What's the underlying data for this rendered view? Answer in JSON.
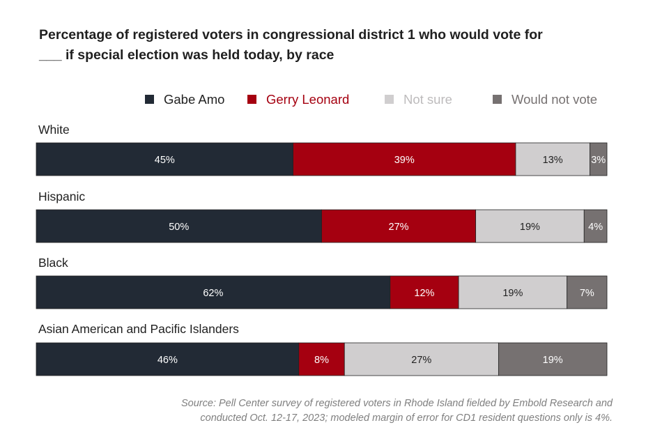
{
  "title_lines": [
    "Percentage of registered voters in congressional district 1 who would vote for",
    "___ if special election was held today, by race"
  ],
  "source_lines": [
    "Source: Pell Center survey of registered voters in Rhode Island fielded by Embold Research and",
    "conducted Oct. 12-17, 2023; modeled margin of error for CD1 resident questions only is 4%."
  ],
  "colors": {
    "gabe_amo": "#222a35",
    "gerry_leonard": "#a50010",
    "not_sure": "#d0cecf",
    "would_not_vote": "#767171",
    "label_dark_bg": "#ffffff",
    "label_light_bg": "#222222"
  },
  "chart_data": {
    "type": "bar",
    "orientation": "horizontal",
    "stacked": true,
    "percent_stacked": true,
    "categories": [
      "White",
      "Hispanic",
      "Black",
      "Asian American and Pacific Islanders"
    ],
    "series": [
      {
        "name": "Gabe Amo",
        "color": "#222a35",
        "values": [
          45,
          50,
          62,
          46
        ]
      },
      {
        "name": "Gerry Leonard",
        "color": "#a50010",
        "values": [
          39,
          27,
          12,
          8
        ]
      },
      {
        "name": "Not sure",
        "color": "#d0cecf",
        "values": [
          13,
          19,
          19,
          27
        ]
      },
      {
        "name": "Would not vote",
        "color": "#767171",
        "values": [
          3,
          4,
          7,
          19
        ]
      }
    ],
    "data_labels": [
      [
        "45%",
        "39%",
        "13%",
        "3%"
      ],
      [
        "50%",
        "27%",
        "19%",
        "4%"
      ],
      [
        "62%",
        "12%",
        "19%",
        "7%"
      ],
      [
        "46%",
        "8%",
        "27%",
        "19%"
      ]
    ],
    "legend_position": "top-right",
    "xlim": [
      0,
      100
    ],
    "grid": false,
    "axes_visible": false
  }
}
